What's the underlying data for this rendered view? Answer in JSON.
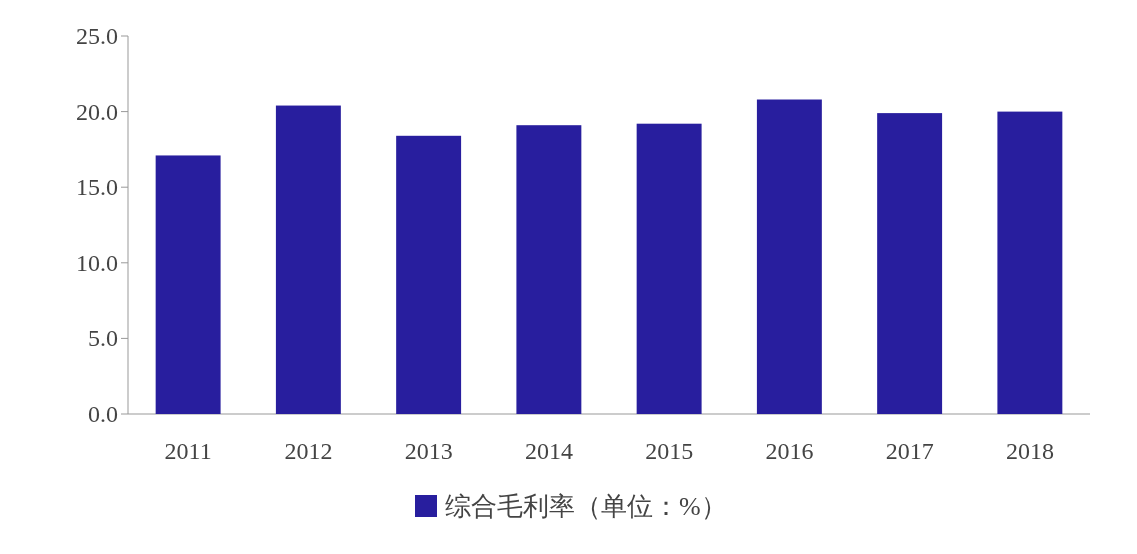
{
  "chart_data": {
    "type": "bar",
    "categories": [
      "2011",
      "2012",
      "2013",
      "2014",
      "2015",
      "2016",
      "2017",
      "2018"
    ],
    "series": [
      {
        "name": "综合毛利率（单位：%）",
        "color": "#281e9e",
        "values": [
          17.1,
          20.4,
          18.4,
          19.1,
          19.2,
          20.8,
          19.9,
          20.0
        ]
      }
    ],
    "ylim": [
      0,
      25
    ],
    "yticks": [
      {
        "value": 0,
        "label": "0.0"
      },
      {
        "value": 5,
        "label": "5.0"
      },
      {
        "value": 10,
        "label": "10.0"
      },
      {
        "value": 15,
        "label": "15.0"
      },
      {
        "value": 20,
        "label": "20.0"
      },
      {
        "value": 25,
        "label": "25.0"
      }
    ],
    "grid": false,
    "legend": "bottom"
  }
}
